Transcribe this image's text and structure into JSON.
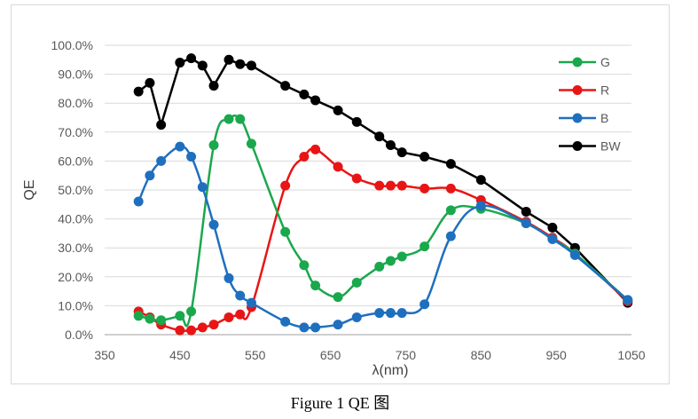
{
  "chart_data": {
    "type": "line",
    "title": "",
    "caption": "Figure 1 QE 图",
    "xlabel": "λ(nm)",
    "ylabel": "QE",
    "xlim": [
      350,
      1050
    ],
    "ylim": [
      0,
      100
    ],
    "xticks": [
      "350",
      "450",
      "550",
      "650",
      "750",
      "850",
      "950",
      "1050"
    ],
    "xtick_values": [
      350,
      450,
      550,
      650,
      750,
      850,
      950,
      1050
    ],
    "yticks": [
      "0.0%",
      "10.0%",
      "20.0%",
      "30.0%",
      "40.0%",
      "50.0%",
      "60.0%",
      "70.0%",
      "80.0%",
      "90.0%",
      "100.0%"
    ],
    "ytick_values": [
      0,
      10,
      20,
      30,
      40,
      50,
      60,
      70,
      80,
      90,
      100
    ],
    "grid": "horizontal",
    "legend_position": "top-right",
    "x": [
      395,
      410,
      425,
      450,
      465,
      480,
      495,
      515,
      530,
      545,
      590,
      615,
      630,
      660,
      685,
      715,
      730,
      745,
      775,
      810,
      850,
      910,
      945,
      975,
      1045
    ],
    "series": [
      {
        "name": "G",
        "color": "#1aa84d",
        "smooth": true,
        "values": [
          6.5,
          5.5,
          5,
          6.5,
          8,
          null,
          65.5,
          74.5,
          74.5,
          66,
          35.5,
          24,
          17,
          13,
          18,
          23.5,
          25.5,
          27,
          30.5,
          43,
          43.5,
          38.5,
          33,
          28,
          12
        ]
      },
      {
        "name": "R",
        "color": "#e81515",
        "smooth": true,
        "values": [
          8,
          6,
          3.5,
          1.5,
          1.5,
          2.5,
          3.5,
          6,
          7,
          9.5,
          51.5,
          61.5,
          64,
          58,
          54,
          51.5,
          51.5,
          51.5,
          50.5,
          50.5,
          46.5,
          39,
          33.5,
          28,
          11.5
        ]
      },
      {
        "name": "B",
        "color": "#1f6fbf",
        "smooth": true,
        "values": [
          46,
          55,
          60,
          65,
          61.5,
          51,
          38,
          19.5,
          13.5,
          11,
          4.5,
          2.5,
          2.5,
          3.5,
          6,
          7.5,
          7.5,
          7.5,
          10.5,
          34,
          44.5,
          38.5,
          33,
          27.5,
          12
        ]
      },
      {
        "name": "BW",
        "color": "#000000",
        "smooth": false,
        "values": [
          84,
          87,
          72.5,
          94,
          95.5,
          93,
          86,
          95,
          93.5,
          93,
          86,
          83,
          81,
          77.5,
          73.5,
          68.5,
          65.5,
          63,
          61.5,
          59,
          53.5,
          42.5,
          37,
          30,
          11
        ]
      }
    ]
  }
}
